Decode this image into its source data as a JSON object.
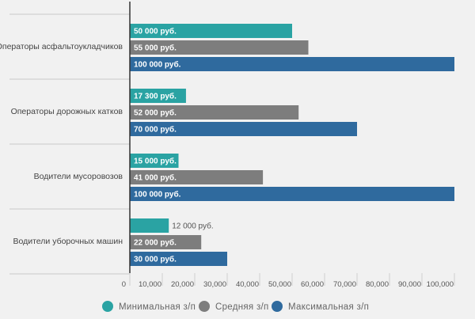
{
  "chart_data": {
    "type": "bar",
    "orientation": "horizontal",
    "categories": [
      "Операторы асфальтоукладчиков",
      "Операторы дорожных катков",
      "Водители мусоровозов",
      "Водители уборочных машин"
    ],
    "series": [
      {
        "name": "Минимальная з/п",
        "color": "#2aa3a3",
        "values": [
          50000,
          17300,
          15000,
          12000
        ],
        "labels": [
          "50 000 руб.",
          "17 300 руб.",
          "15 000 руб.",
          "12 000 руб."
        ]
      },
      {
        "name": "Средняя з/п",
        "color": "#7d7d7d",
        "values": [
          55000,
          52000,
          41000,
          22000
        ],
        "labels": [
          "55 000 руб.",
          "52 000 руб.",
          "41 000 руб.",
          "22 000 руб."
        ]
      },
      {
        "name": "Максимальная з/п",
        "color": "#2f6a9e",
        "values": [
          100000,
          70000,
          100000,
          30000
        ],
        "labels": [
          "100 000 руб.",
          "70 000 руб.",
          "100 000 руб.",
          "30 000 руб."
        ]
      }
    ],
    "xlim": [
      0,
      100000
    ],
    "x_ticks": [
      0,
      10000,
      20000,
      30000,
      40000,
      50000,
      60000,
      70000,
      80000,
      90000,
      100000
    ],
    "x_tick_labels": [
      "0",
      "10,000",
      "20,000",
      "30,000",
      "40,000",
      "50,000",
      "60,000",
      "70,000",
      "80,000",
      "90,000",
      "100,000"
    ],
    "legend_position": "bottom",
    "grid": false
  }
}
